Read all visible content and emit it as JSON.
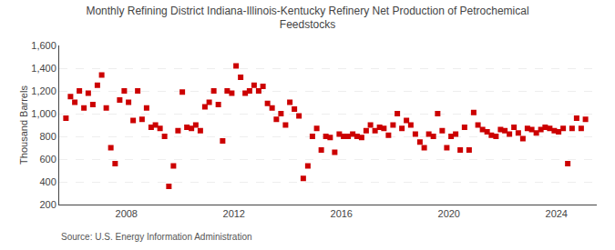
{
  "chart_data": {
    "type": "scatter",
    "title": "Monthly Refining District Indiana-Illinois-Kentucky Refinery Net Production of Petrochemical\nFeedstocks",
    "ylabel": "Thousand Barrels",
    "annotations": [
      "Source: U.S. Energy Information Administration"
    ],
    "color": "#cc0000",
    "marker": "square",
    "grid": "y",
    "xlim": [
      2005.5,
      2025.5
    ],
    "xticks": [
      2008,
      2012,
      2016,
      2020,
      2024
    ],
    "ylim": [
      200,
      1600
    ],
    "yticks": [
      200,
      400,
      600,
      800,
      {
        "value": 1000,
        "label": "1,000"
      },
      {
        "value": 1200,
        "label": "1,200"
      },
      {
        "value": 1400,
        "label": "1,400"
      },
      {
        "value": 1600,
        "label": "1,600"
      }
    ],
    "x": [
      2005.75,
      2005.92,
      2006.08,
      2006.25,
      2006.42,
      2006.58,
      2006.75,
      2006.92,
      2007.08,
      2007.25,
      2007.42,
      2007.58,
      2007.75,
      2007.92,
      2008.08,
      2008.25,
      2008.42,
      2008.58,
      2008.75,
      2008.92,
      2009.08,
      2009.25,
      2009.42,
      2009.58,
      2009.75,
      2009.92,
      2010.08,
      2010.25,
      2010.42,
      2010.58,
      2010.75,
      2010.92,
      2011.08,
      2011.25,
      2011.42,
      2011.58,
      2011.75,
      2011.92,
      2012.08,
      2012.25,
      2012.42,
      2012.58,
      2012.75,
      2012.92,
      2013.08,
      2013.25,
      2013.42,
      2013.58,
      2013.75,
      2013.92,
      2014.08,
      2014.25,
      2014.42,
      2014.58,
      2014.75,
      2014.92,
      2015.08,
      2015.25,
      2015.42,
      2015.58,
      2015.75,
      2015.92,
      2016.08,
      2016.25,
      2016.42,
      2016.58,
      2016.75,
      2016.92,
      2017.08,
      2017.25,
      2017.42,
      2017.58,
      2017.75,
      2017.92,
      2018.08,
      2018.25,
      2018.42,
      2018.58,
      2018.75,
      2018.92,
      2019.08,
      2019.25,
      2019.42,
      2019.58,
      2019.75,
      2019.92,
      2020.08,
      2020.25,
      2020.42,
      2020.58,
      2020.75,
      2020.92,
      2021.08,
      2021.25,
      2021.42,
      2021.58,
      2021.75,
      2021.92,
      2022.08,
      2022.25,
      2022.42,
      2022.58,
      2022.75,
      2022.92,
      2023.08,
      2023.25,
      2023.42,
      2023.58,
      2023.75,
      2023.92,
      2024.08,
      2024.25,
      2024.42,
      2024.58,
      2024.75,
      2024.92,
      2025.08
    ],
    "values": [
      960,
      1150,
      1100,
      1200,
      1050,
      1180,
      1080,
      1250,
      1340,
      1050,
      700,
      560,
      1120,
      1200,
      1100,
      940,
      1200,
      950,
      1050,
      880,
      900,
      870,
      800,
      360,
      540,
      850,
      1190,
      880,
      870,
      900,
      850,
      1060,
      1100,
      1200,
      1080,
      760,
      1200,
      1180,
      1420,
      1320,
      1180,
      1200,
      1250,
      1200,
      1240,
      1090,
      1050,
      950,
      1000,
      900,
      1100,
      1040,
      980,
      430,
      540,
      800,
      870,
      680,
      800,
      790,
      660,
      820,
      800,
      800,
      820,
      800,
      790,
      850,
      900,
      850,
      880,
      870,
      810,
      900,
      1000,
      870,
      940,
      900,
      820,
      750,
      700,
      820,
      800,
      1000,
      850,
      700,
      800,
      820,
      680,
      880,
      680,
      1010,
      900,
      860,
      840,
      810,
      800,
      860,
      850,
      820,
      880,
      830,
      780,
      870,
      860,
      830,
      860,
      880,
      870,
      850,
      840,
      870,
      560,
      870,
      960,
      870,
      950
    ]
  }
}
